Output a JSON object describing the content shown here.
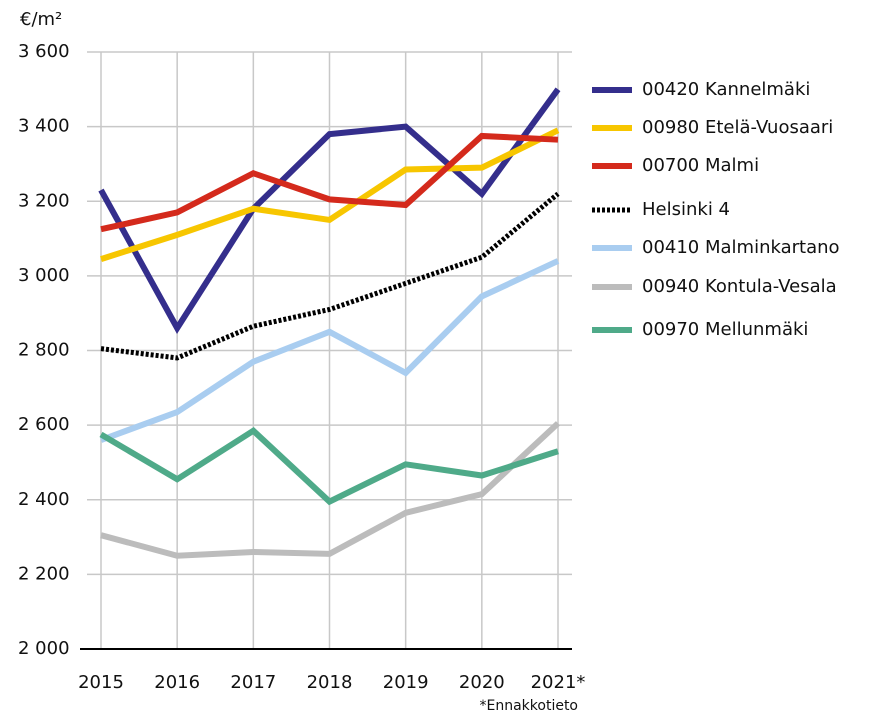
{
  "chart_data": {
    "type": "line",
    "y_label": "€/m²",
    "annotation": "*Ennakkotieto",
    "categories": [
      "2015",
      "2016",
      "2017",
      "2018",
      "2019",
      "2020",
      "2021*"
    ],
    "series": [
      {
        "name": "00420 Kannelmäki",
        "color": "#342e8c",
        "values": [
          3230,
          2860,
          3180,
          3380,
          3400,
          3220,
          3500
        ]
      },
      {
        "name": "00980 Etelä-Vuosaari",
        "color": "#f7c600",
        "values": [
          3045,
          3110,
          3180,
          3150,
          3285,
          3290,
          3390
        ]
      },
      {
        "name": "00700 Malmi",
        "color": "#d42a1c",
        "values": [
          3125,
          3170,
          3275,
          3205,
          3190,
          3375,
          3365
        ]
      },
      {
        "name": "Helsinki 4",
        "color": "#000000",
        "style": "dotted",
        "values": [
          2805,
          2780,
          2865,
          2910,
          2980,
          3050,
          3220
        ]
      },
      {
        "name": "00410 Malminkartano",
        "color": "#a9cdf0",
        "values": [
          2560,
          2635,
          2770,
          2850,
          2740,
          2945,
          3040
        ]
      },
      {
        "name": "00940 Kontula-Vesala",
        "color": "#bcbcbc",
        "values": [
          2305,
          2250,
          2260,
          2255,
          2365,
          2415,
          2605
        ]
      },
      {
        "name": "00970 Mellunmäki",
        "color": "#4faa89",
        "values": [
          2575,
          2455,
          2585,
          2395,
          2495,
          2465,
          2530
        ]
      }
    ],
    "ylim": [
      2000,
      3600
    ],
    "yticks": [
      {
        "value": 2000,
        "label": "2 000"
      },
      {
        "value": 2200,
        "label": "2 200"
      },
      {
        "value": 2400,
        "label": "2 400"
      },
      {
        "value": 2600,
        "label": "2 600"
      },
      {
        "value": 2800,
        "label": "2 800"
      },
      {
        "value": 3000,
        "label": "3 000"
      },
      {
        "value": 3200,
        "label": "3 200"
      },
      {
        "value": 3400,
        "label": "3 400"
      },
      {
        "value": 3600,
        "label": "3 600"
      }
    ],
    "grid": true,
    "legend": "right"
  }
}
